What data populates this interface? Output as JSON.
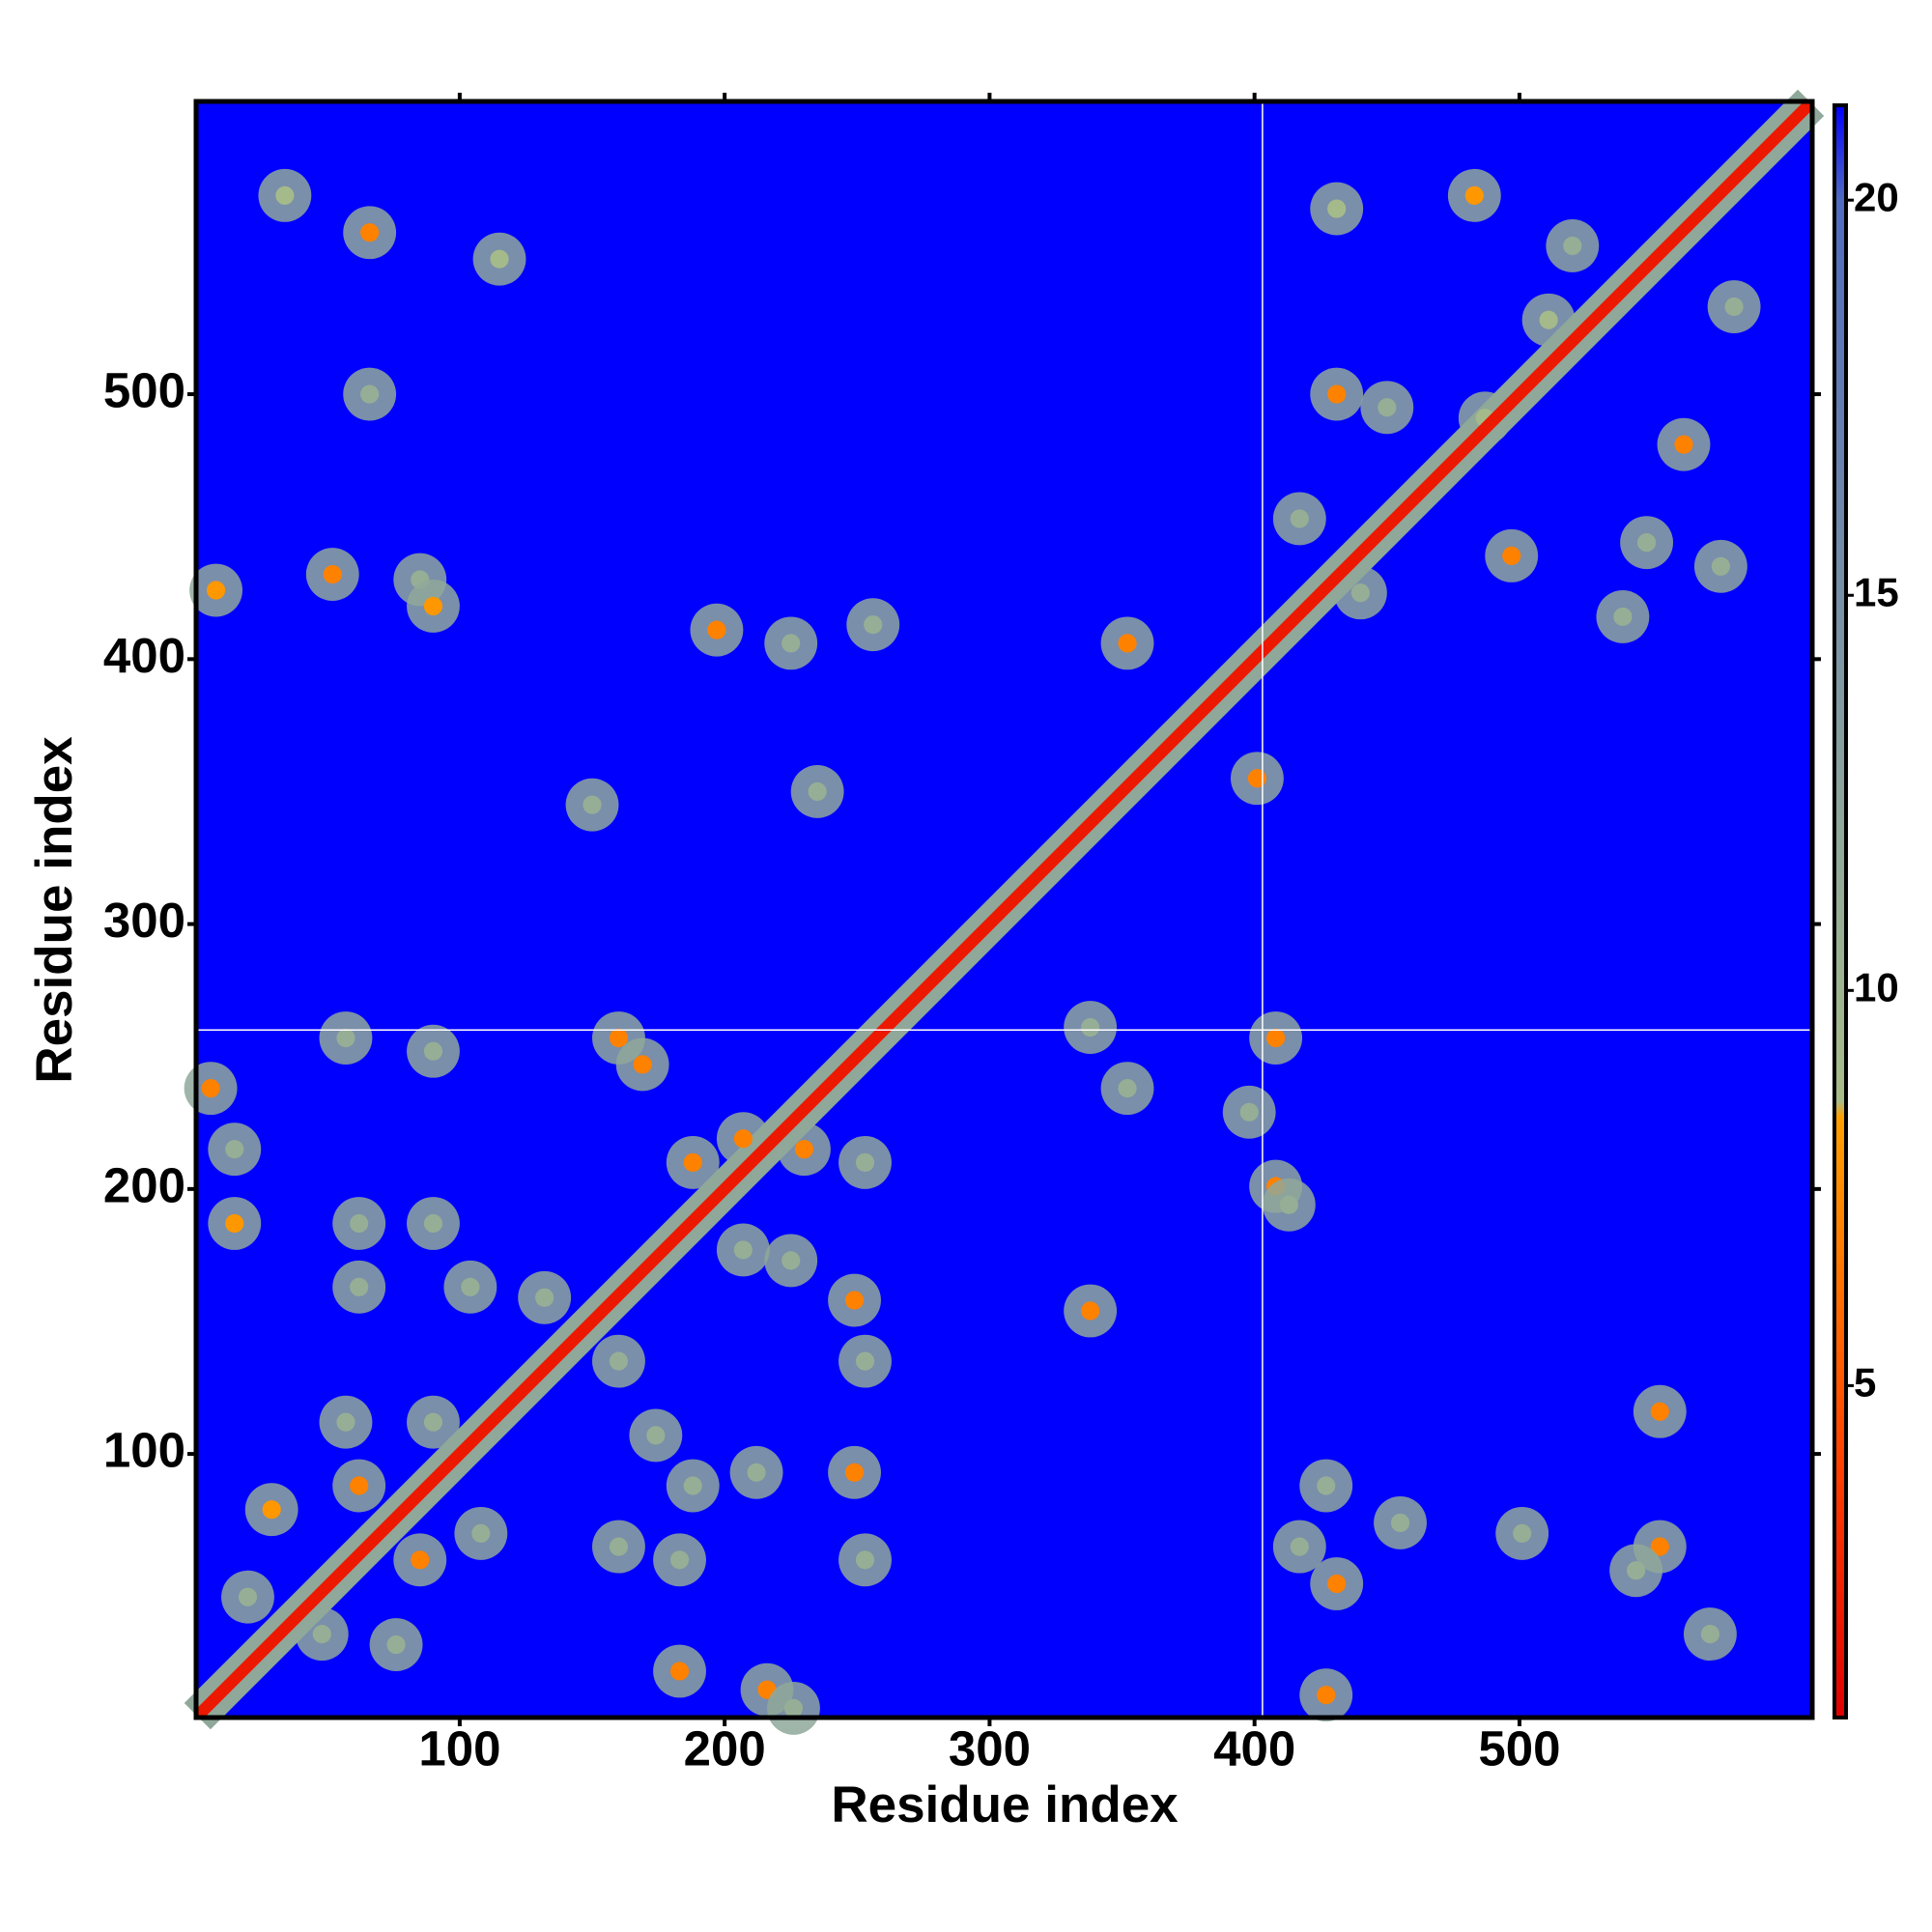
{
  "chart_data": {
    "type": "heatmap",
    "xlabel": "Residue index",
    "ylabel": "Residue index",
    "xlim": [
      0.5,
      610.5
    ],
    "ylim": [
      0.5,
      610.5
    ],
    "xticks": [
      100,
      200,
      300,
      400,
      500
    ],
    "yticks": [
      100,
      200,
      300,
      400,
      500
    ],
    "clim": [
      0.8,
      21.2
    ],
    "cticks": [
      5,
      10,
      15,
      20
    ],
    "colorscale": [
      [
        0.8,
        "#e00000"
      ],
      [
        4,
        "#ff4000"
      ],
      [
        8.4,
        "#ffa000"
      ],
      [
        8.6,
        "#a8bc88"
      ],
      [
        12,
        "#8fa89a"
      ],
      [
        17,
        "#6680b0"
      ],
      [
        20,
        "#4f6cc0"
      ],
      [
        21.2,
        "#0000ff"
      ]
    ],
    "background_color": "#0000ff",
    "crosshair": {
      "x": 403,
      "y": 260
    },
    "diagonal": {
      "x": [
        1,
        50,
        100,
        150,
        200,
        250,
        300,
        350,
        400,
        450,
        500,
        550,
        610
      ],
      "y": [
        1,
        50,
        100,
        150,
        200,
        250,
        300,
        350,
        400,
        450,
        500,
        550,
        610
      ],
      "values": [
        2,
        2,
        2,
        2,
        2,
        2,
        2,
        2,
        2,
        2,
        2,
        2,
        2
      ]
    },
    "contacts": {
      "x": [
        34,
        66,
        115,
        66,
        8,
        52,
        85,
        90,
        197,
        225,
        256,
        150,
        235,
        352,
        401,
        431,
        483,
        520,
        431,
        450,
        487,
        417,
        440,
        497,
        548,
        576,
        539,
        562,
        581,
        511,
        338,
        352,
        408,
        398,
        408,
        413,
        338,
        160,
        169,
        90,
        57,
        6,
        15,
        15,
        62,
        90,
        62,
        104,
        132,
        188,
        207,
        230,
        253,
        207,
        225,
        249,
        253,
        160,
        57,
        90,
        62,
        29,
        108,
        85,
        20,
        48,
        76,
        160,
        183,
        174,
        188,
        212,
        249,
        253,
        183,
        216,
        226,
        427,
        431,
        417,
        427,
        455,
        501,
        553,
        553,
        572,
        544
      ],
      "y": [
        575,
        561,
        551,
        500,
        426,
        432,
        430,
        420,
        411,
        406,
        413,
        345,
        350,
        406,
        355,
        570,
        575,
        556,
        500,
        495,
        491,
        453,
        425,
        439,
        444,
        435,
        416,
        481,
        533,
        528,
        261,
        238,
        257,
        229,
        201,
        194,
        154,
        257,
        247,
        252,
        257,
        238,
        215,
        187,
        187,
        187,
        163,
        163,
        159,
        210,
        219,
        215,
        210,
        177,
        173,
        158,
        135,
        135,
        112,
        112,
        88,
        79,
        70,
        60,
        46,
        32,
        28,
        65,
        60,
        107,
        88,
        93,
        93,
        60,
        18,
        11,
        4,
        88,
        51,
        65,
        9,
        74,
        70,
        116,
        65,
        32,
        56
      ],
      "values": [
        9,
        7,
        9,
        11,
        8,
        7,
        11,
        8,
        7,
        11,
        11,
        11,
        11,
        7,
        7,
        9,
        8,
        11,
        7,
        11,
        9,
        11,
        11,
        7,
        11,
        11,
        11,
        7,
        11,
        9,
        11,
        11,
        7,
        11,
        7,
        11,
        7,
        7,
        7,
        11,
        11,
        7,
        11,
        8,
        11,
        11,
        11,
        11,
        11,
        7,
        7,
        7,
        11,
        11,
        11,
        7,
        11,
        11,
        11,
        11,
        7,
        8,
        11,
        7,
        11,
        11,
        11,
        11,
        11,
        11,
        11,
        11,
        7,
        11,
        7,
        7,
        11,
        11,
        7,
        11,
        7,
        11,
        11,
        7,
        7,
        11,
        11
      ]
    }
  }
}
